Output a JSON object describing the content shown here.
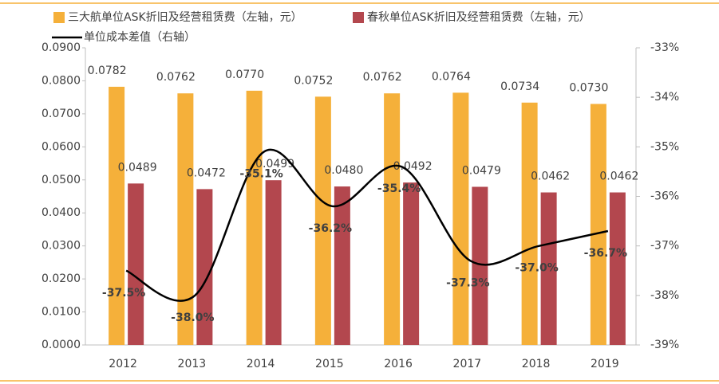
{
  "chart_data": {
    "type": "bar",
    "categories": [
      "2012",
      "2013",
      "2014",
      "2015",
      "2016",
      "2017",
      "2018",
      "2019"
    ],
    "series": [
      {
        "name": "三大航单位ASK折旧及经营租赁费（左轴，元）",
        "color": "#F5B03A",
        "values": [
          0.0782,
          0.0762,
          0.077,
          0.0752,
          0.0762,
          0.0764,
          0.0734,
          0.073
        ],
        "value_labels": [
          "0.0782",
          "0.0762",
          "0.0770",
          "0.0752",
          "0.0762",
          "0.0764",
          "0.0734",
          "0.0730"
        ]
      },
      {
        "name": "春秋单位ASK折旧及经营租赁费（左轴，元）",
        "color": "#B3474E",
        "values": [
          0.0489,
          0.0472,
          0.0499,
          0.048,
          0.0492,
          0.0479,
          0.0462,
          0.0462
        ],
        "value_labels": [
          "0.0489",
          "0.0472",
          "0.0499",
          "0.0480",
          "0.0492",
          "0.0479",
          "0.0462",
          "0.0462"
        ]
      },
      {
        "name": "单位成本差值（右轴）",
        "type": "line",
        "axis": "y2",
        "color": "#000000",
        "values": [
          -37.5,
          -38.0,
          -35.1,
          -36.2,
          -35.4,
          -37.3,
          -37.0,
          -36.7
        ],
        "value_labels": [
          "-37.5%",
          "-38.0%",
          "-35.1%",
          "-36.2%",
          "-35.4%",
          "-37.3%",
          "-37.0%",
          "-36.7%"
        ]
      }
    ],
    "ylim": [
      0,
      0.09
    ],
    "yticks": [
      {
        "value": 0,
        "label": "0.0000"
      },
      {
        "value": 0.01,
        "label": "0.0100"
      },
      {
        "value": 0.02,
        "label": "0.0200"
      },
      {
        "value": 0.03,
        "label": "0.0300"
      },
      {
        "value": 0.04,
        "label": "0.0400"
      },
      {
        "value": 0.05,
        "label": "0.0500"
      },
      {
        "value": 0.06,
        "label": "0.0600"
      },
      {
        "value": 0.07,
        "label": "0.0700"
      },
      {
        "value": 0.08,
        "label": "0.0800"
      },
      {
        "value": 0.09,
        "label": "0.0900"
      }
    ],
    "y2lim": [
      -39,
      -33
    ],
    "y2ticks": [
      {
        "value": -39,
        "label": "-39%"
      },
      {
        "value": -38,
        "label": "-38%"
      },
      {
        "value": -37,
        "label": "-37%"
      },
      {
        "value": -36,
        "label": "-36%"
      },
      {
        "value": -35,
        "label": "-35%"
      },
      {
        "value": -34,
        "label": "-34%"
      },
      {
        "value": -33,
        "label": "-33%"
      }
    ],
    "smooth": true
  }
}
